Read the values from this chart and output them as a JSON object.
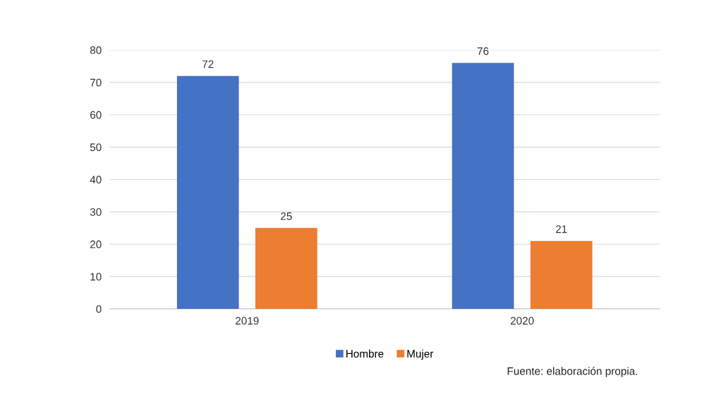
{
  "chart_data": {
    "type": "bar",
    "categories": [
      "2019",
      "2020"
    ],
    "series": [
      {
        "name": "Hombre",
        "color": "#4472c4",
        "values": [
          72,
          76
        ]
      },
      {
        "name": "Mujer",
        "color": "#ed7d31",
        "values": [
          25,
          21
        ]
      }
    ],
    "ylim": [
      0,
      80
    ],
    "yticks": [
      0,
      10,
      20,
      30,
      40,
      50,
      60,
      70,
      80
    ],
    "grid": "y",
    "legend": "bottom",
    "data_labels": true,
    "annotations": [
      "Fuente: elaboración propia."
    ]
  }
}
